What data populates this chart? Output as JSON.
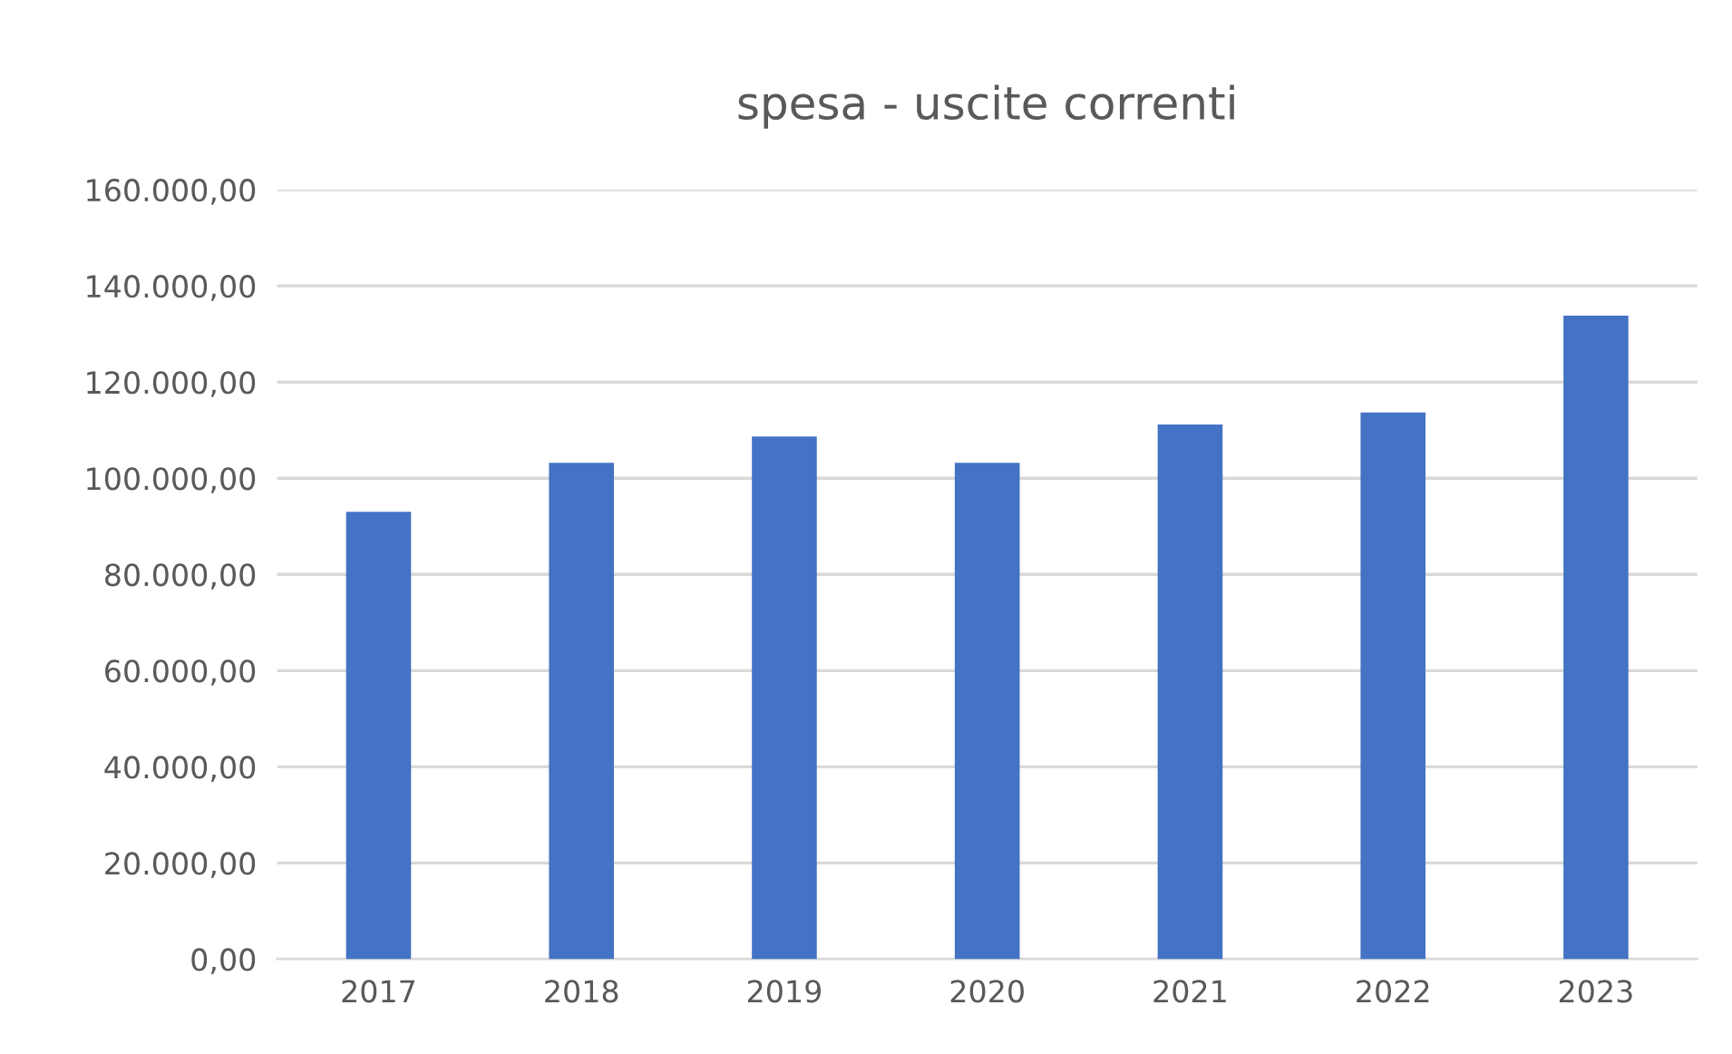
{
  "chart_data": {
    "type": "bar",
    "title": "spesa - uscite correnti",
    "categories": [
      "2017",
      "2018",
      "2019",
      "2020",
      "2021",
      "2022",
      "2023"
    ],
    "values": [
      93000,
      103200,
      108700,
      103200,
      111200,
      113700,
      133800
    ],
    "color": "#4472c4",
    "ylim": [
      0,
      160000
    ],
    "yticks": [
      {
        "value": 0,
        "label": "0,00"
      },
      {
        "value": 20000,
        "label": "20.000,00"
      },
      {
        "value": 40000,
        "label": "40.000,00"
      },
      {
        "value": 60000,
        "label": "60.000,00"
      },
      {
        "value": 80000,
        "label": "80.000,00"
      },
      {
        "value": 100000,
        "label": "100.000,00"
      },
      {
        "value": 120000,
        "label": "120.000,00"
      },
      {
        "value": 140000,
        "label": "140.000,00"
      },
      {
        "value": 160000,
        "label": "160.000,00"
      }
    ],
    "grid": "y"
  }
}
